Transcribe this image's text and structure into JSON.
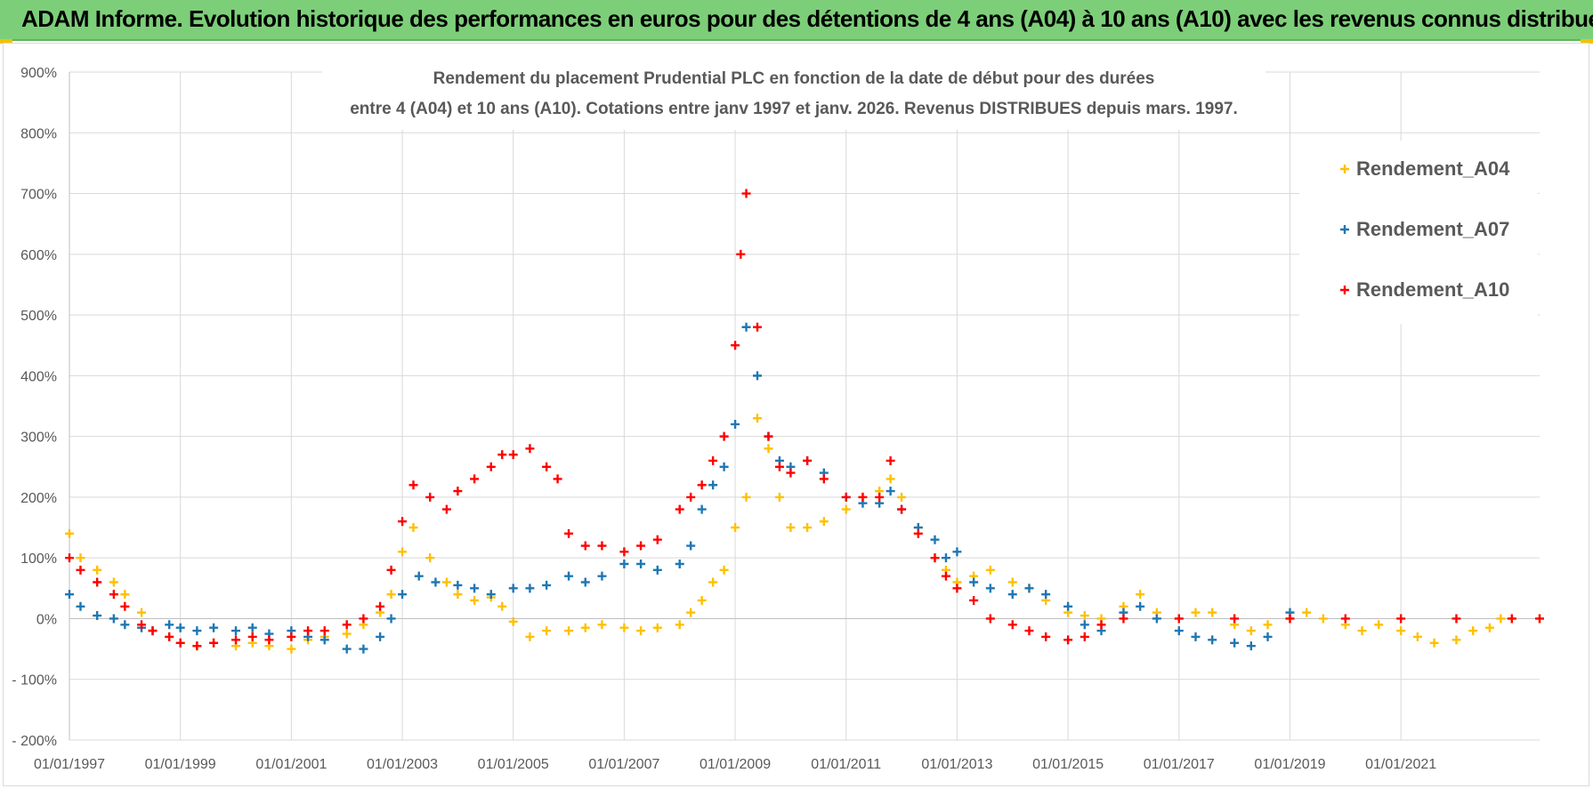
{
  "banner": {
    "title": "ADAM Informe. Evolution historique des performances en euros pour des détentions de 4 ans (A04) à 10 ans (A10) avec les revenus connus distribués"
  },
  "chart_data": {
    "type": "scatter",
    "title_line1": "Rendement du placement Prudential PLC en fonction de la date de début pour des durées",
    "title_line2": "entre 4 (A04) et 10 ans (A10).  Cotations entre janv 1997 et janv. 2026. Revenus DISTRIBUES depuis mars. 1997.",
    "xlabel": "",
    "ylabel": "",
    "xlim": [
      1997.0,
      2023.5
    ],
    "ylim": [
      -200,
      900
    ],
    "y_ticks": [
      -200,
      -100,
      0,
      100,
      200,
      300,
      400,
      500,
      600,
      700,
      800,
      900
    ],
    "y_tick_labels": [
      "- 200%",
      "- 100%",
      "0%",
      "100%",
      "200%",
      "300%",
      "400%",
      "500%",
      "600%",
      "700%",
      "800%",
      "900%"
    ],
    "x_ticks": [
      1997,
      1999,
      2001,
      2003,
      2005,
      2007,
      2009,
      2011,
      2013,
      2015,
      2017,
      2019,
      2021
    ],
    "x_tick_labels": [
      "01/01/1997",
      "01/01/1999",
      "01/01/2001",
      "01/01/2003",
      "01/01/2005",
      "01/01/2007",
      "01/01/2009",
      "01/01/2011",
      "01/01/2013",
      "01/01/2015",
      "01/01/2017",
      "01/01/2019",
      "01/01/2021"
    ],
    "grid": true,
    "legend_position": "top-right",
    "series": [
      {
        "name": "Rendement_A04",
        "color": "#ffc000",
        "x": [
          1997.0,
          1997.2,
          1997.5,
          1997.8,
          1998.0,
          1998.3,
          1998.5,
          1998.8,
          1999.0,
          1999.3,
          1999.6,
          2000.0,
          2000.3,
          2000.6,
          2001.0,
          2001.3,
          2001.6,
          2002.0,
          2002.3,
          2002.6,
          2002.8,
          2003.0,
          2003.2,
          2003.5,
          2003.8,
          2004.0,
          2004.3,
          2004.6,
          2004.8,
          2005.0,
          2005.3,
          2005.6,
          2006.0,
          2006.3,
          2006.6,
          2007.0,
          2007.3,
          2007.6,
          2008.0,
          2008.2,
          2008.4,
          2008.6,
          2008.8,
          2009.0,
          2009.2,
          2009.4,
          2009.6,
          2009.8,
          2010.0,
          2010.3,
          2010.6,
          2011.0,
          2011.3,
          2011.6,
          2011.8,
          2012.0,
          2012.3,
          2012.6,
          2012.8,
          2013.0,
          2013.3,
          2013.6,
          2014.0,
          2014.3,
          2014.6,
          2015.0,
          2015.3,
          2015.6,
          2016.0,
          2016.3,
          2016.6,
          2017.0,
          2017.3,
          2017.6,
          2018.0,
          2018.3,
          2018.6,
          2019.0,
          2019.3,
          2019.6,
          2020.0,
          2020.3,
          2020.6,
          2021.0,
          2021.3,
          2021.6,
          2022.0,
          2022.3,
          2022.6,
          2022.8,
          2023.0,
          2023.5
        ],
        "y": [
          140,
          100,
          80,
          60,
          40,
          10,
          -20,
          -30,
          -40,
          -45,
          -40,
          -45,
          -40,
          -45,
          -50,
          -35,
          -30,
          -25,
          -10,
          10,
          40,
          110,
          150,
          100,
          60,
          40,
          30,
          35,
          20,
          -5,
          -30,
          -20,
          -20,
          -15,
          -10,
          -15,
          -20,
          -15,
          -10,
          10,
          30,
          60,
          80,
          150,
          200,
          330,
          280,
          200,
          150,
          150,
          160,
          180,
          200,
          210,
          230,
          200,
          150,
          100,
          80,
          60,
          70,
          80,
          60,
          50,
          30,
          10,
          5,
          0,
          20,
          40,
          10,
          0,
          10,
          10,
          -10,
          -20,
          -10,
          0,
          10,
          0,
          -10,
          -20,
          -10,
          -20,
          -30,
          -40,
          -35,
          -20,
          -15,
          0,
          0,
          0
        ]
      },
      {
        "name": "Rendement_A07",
        "color": "#1f77b4",
        "x": [
          1997.0,
          1997.2,
          1997.5,
          1997.8,
          1998.0,
          1998.3,
          1998.5,
          1998.8,
          1999.0,
          1999.3,
          1999.6,
          2000.0,
          2000.3,
          2000.6,
          2001.0,
          2001.3,
          2001.6,
          2002.0,
          2002.3,
          2002.6,
          2002.8,
          2003.0,
          2003.3,
          2003.6,
          2004.0,
          2004.3,
          2004.6,
          2005.0,
          2005.3,
          2005.6,
          2006.0,
          2006.3,
          2006.6,
          2007.0,
          2007.3,
          2007.6,
          2008.0,
          2008.2,
          2008.4,
          2008.6,
          2008.8,
          2009.0,
          2009.2,
          2009.4,
          2009.6,
          2009.8,
          2010.0,
          2010.3,
          2010.6,
          2011.0,
          2011.3,
          2011.6,
          2011.8,
          2012.0,
          2012.3,
          2012.6,
          2012.8,
          2013.0,
          2013.3,
          2013.6,
          2014.0,
          2014.3,
          2014.6,
          2015.0,
          2015.3,
          2015.6,
          2016.0,
          2016.3,
          2016.6,
          2017.0,
          2017.3,
          2017.6,
          2018.0,
          2018.3,
          2018.6,
          2019.0
        ],
        "y": [
          40,
          20,
          5,
          0,
          -10,
          -15,
          -20,
          -10,
          -15,
          -20,
          -15,
          -20,
          -15,
          -25,
          -20,
          -30,
          -35,
          -50,
          -50,
          -30,
          0,
          40,
          70,
          60,
          55,
          50,
          40,
          50,
          50,
          55,
          70,
          60,
          70,
          90,
          90,
          80,
          90,
          120,
          180,
          220,
          250,
          320,
          480,
          400,
          300,
          260,
          250,
          260,
          240,
          200,
          190,
          190,
          210,
          180,
          150,
          130,
          100,
          110,
          60,
          50,
          40,
          50,
          40,
          20,
          -10,
          -20,
          10,
          20,
          0,
          -20,
          -30,
          -35,
          -40,
          -45,
          -30,
          10
        ]
      },
      {
        "name": "Rendement_A10",
        "color": "#ff0000",
        "x": [
          1997.0,
          1997.2,
          1997.5,
          1997.8,
          1998.0,
          1998.3,
          1998.5,
          1998.8,
          1999.0,
          1999.3,
          1999.6,
          2000.0,
          2000.3,
          2000.6,
          2001.0,
          2001.3,
          2001.6,
          2002.0,
          2002.3,
          2002.6,
          2002.8,
          2003.0,
          2003.2,
          2003.5,
          2003.8,
          2004.0,
          2004.3,
          2004.6,
          2004.8,
          2005.0,
          2005.3,
          2005.6,
          2005.8,
          2006.0,
          2006.3,
          2006.6,
          2007.0,
          2007.3,
          2007.6,
          2008.0,
          2008.2,
          2008.4,
          2008.6,
          2008.8,
          2009.0,
          2009.1,
          2009.2,
          2009.4,
          2009.6,
          2009.8,
          2010.0,
          2010.3,
          2010.6,
          2011.0,
          2011.3,
          2011.6,
          2011.8,
          2012.0,
          2012.3,
          2012.6,
          2012.8,
          2013.0,
          2013.3,
          2013.6,
          2014.0,
          2014.3,
          2014.6,
          2015.0,
          2015.3,
          2015.6,
          2016.0,
          2017.0,
          2018.0,
          2019.0,
          2020.0,
          2021.0,
          2022.0,
          2023.0,
          2023.5
        ],
        "y": [
          100,
          80,
          60,
          40,
          20,
          -10,
          -20,
          -30,
          -40,
          -45,
          -40,
          -35,
          -30,
          -35,
          -30,
          -20,
          -20,
          -10,
          0,
          20,
          80,
          160,
          220,
          200,
          180,
          210,
          230,
          250,
          270,
          270,
          280,
          250,
          230,
          140,
          120,
          120,
          110,
          120,
          130,
          180,
          200,
          220,
          260,
          300,
          450,
          600,
          700,
          480,
          300,
          250,
          240,
          260,
          230,
          200,
          200,
          200,
          260,
          180,
          140,
          100,
          70,
          50,
          30,
          0,
          -10,
          -20,
          -30,
          -35,
          -30,
          -10,
          0,
          0,
          0,
          0,
          0,
          0,
          0,
          0,
          0
        ]
      }
    ]
  }
}
